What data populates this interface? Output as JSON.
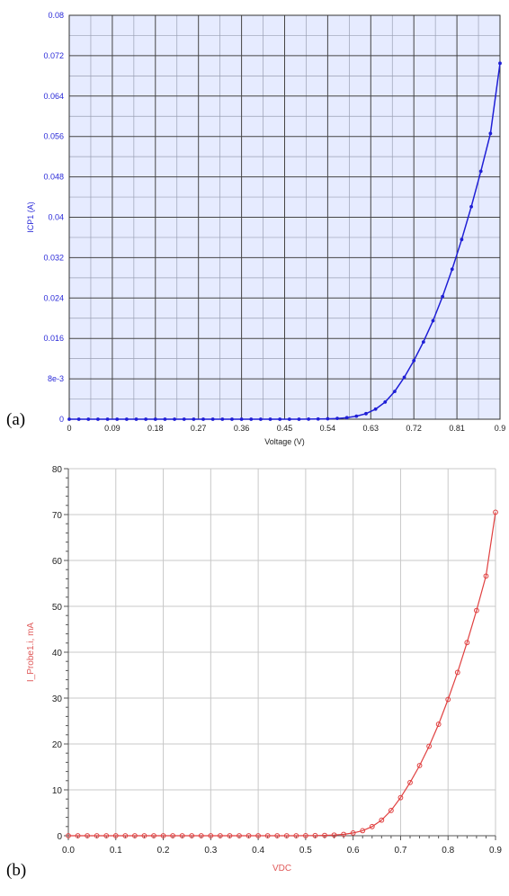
{
  "panels": {
    "a": {
      "tag": "(a)"
    },
    "b": {
      "tag": "(b)"
    }
  },
  "chart_data": [
    {
      "type": "line",
      "xlabel": "Voltage (V)",
      "ylabel": "ICP1 (A)",
      "xlim": [
        0,
        0.9
      ],
      "ylim": [
        0,
        0.08
      ],
      "xticks": [
        "0",
        "0.09",
        "0.18",
        "0.27",
        "0.36",
        "0.45",
        "0.54",
        "0.63",
        "0.72",
        "0.81",
        "0.9"
      ],
      "yticks": [
        "0",
        "8e-3",
        "0.016",
        "0.024",
        "0.032",
        "0.04",
        "0.048",
        "0.056",
        "0.064",
        "0.072",
        "0.08"
      ],
      "grid": true,
      "colors": {
        "line": "#1f1fd6",
        "axis_text": "#2a2ad8",
        "plot_bg": "#e6ebff",
        "major_grid": "#444444",
        "minor_grid": "#9aa0b4"
      },
      "series": [
        {
          "x": [
            0.0,
            0.02,
            0.04,
            0.06,
            0.08,
            0.1,
            0.12,
            0.14,
            0.16,
            0.18,
            0.2,
            0.22,
            0.24,
            0.26,
            0.28,
            0.3,
            0.32,
            0.34,
            0.36,
            0.38,
            0.4,
            0.42,
            0.44,
            0.46,
            0.48,
            0.5,
            0.52,
            0.54,
            0.56,
            0.58,
            0.6,
            0.62,
            0.64,
            0.66,
            0.68,
            0.7,
            0.72,
            0.74,
            0.76,
            0.78,
            0.8,
            0.82,
            0.84,
            0.86,
            0.88,
            0.9
          ],
          "y": [
            0,
            0,
            0,
            0,
            0,
            0,
            0,
            0,
            0,
            0,
            0,
            0,
            0,
            0,
            0,
            0,
            0,
            0,
            0,
            0,
            0,
            0,
            0,
            0,
            0,
            2e-05,
            4e-05,
            8e-05,
            0.00015,
            0.0003,
            0.0006,
            0.0011,
            0.002,
            0.0034,
            0.0055,
            0.0083,
            0.0116,
            0.0153,
            0.0195,
            0.0243,
            0.0297,
            0.0356,
            0.0421,
            0.0491,
            0.0566,
            0.0705
          ]
        }
      ]
    },
    {
      "type": "line",
      "xlabel": "VDC",
      "ylabel": "I_Probe1.i, mA",
      "xlim": [
        0,
        0.9
      ],
      "ylim": [
        0,
        80
      ],
      "xticks": [
        "0.0",
        "0.1",
        "0.2",
        "0.3",
        "0.4",
        "0.5",
        "0.6",
        "0.7",
        "0.8",
        "0.9"
      ],
      "yticks": [
        "0",
        "10",
        "20",
        "30",
        "40",
        "50",
        "60",
        "70",
        "80"
      ],
      "grid": true,
      "colors": {
        "line": "#e04040",
        "axis_label": "#e05a5a",
        "tick_text": "#222222",
        "plot_bg": "#ffffff",
        "grid": "#c8c8c8"
      },
      "series": [
        {
          "x": [
            0.0,
            0.02,
            0.04,
            0.06,
            0.08,
            0.1,
            0.12,
            0.14,
            0.16,
            0.18,
            0.2,
            0.22,
            0.24,
            0.26,
            0.28,
            0.3,
            0.32,
            0.34,
            0.36,
            0.38,
            0.4,
            0.42,
            0.44,
            0.46,
            0.48,
            0.5,
            0.52,
            0.54,
            0.56,
            0.58,
            0.6,
            0.62,
            0.64,
            0.66,
            0.68,
            0.7,
            0.72,
            0.74,
            0.76,
            0.78,
            0.8,
            0.82,
            0.84,
            0.86,
            0.88,
            0.9
          ],
          "y": [
            0,
            0,
            0,
            0,
            0,
            0,
            0,
            0,
            0,
            0,
            0,
            0,
            0,
            0,
            0,
            0,
            0,
            0,
            0,
            0,
            0,
            0,
            0,
            0,
            0,
            0.02,
            0.04,
            0.08,
            0.15,
            0.3,
            0.6,
            1.1,
            2.0,
            3.4,
            5.5,
            8.3,
            11.6,
            15.3,
            19.5,
            24.3,
            29.7,
            35.6,
            42.1,
            49.1,
            56.6,
            70.5
          ]
        }
      ]
    }
  ]
}
